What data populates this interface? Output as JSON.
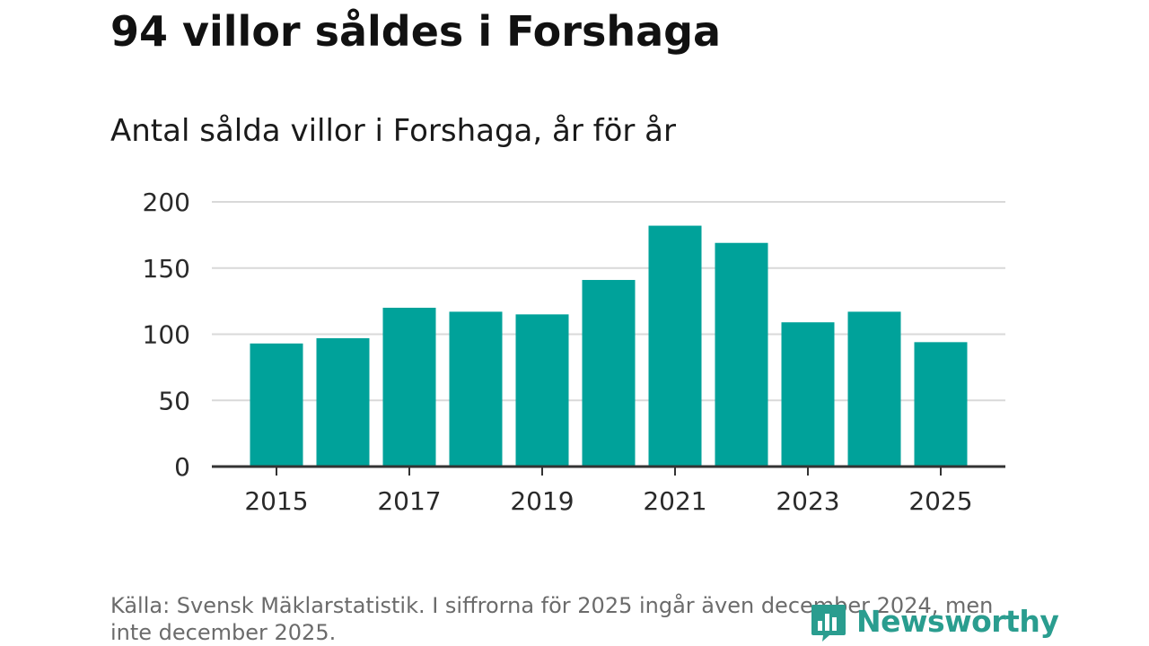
{
  "header": {
    "title": "94 villor såldes i Forshaga",
    "subtitle": "Antal sålda villor i Forshaga, år för år"
  },
  "footer": {
    "source": "Källa: Svensk Mäklarstatistik. I siffrorna för 2025 ingår även december 2024, men inte december 2025.",
    "brand": "Newsworthy",
    "brand_icon": "bar-chart-logo-icon",
    "brand_color": "#2a9d8f"
  },
  "chart_data": {
    "type": "bar",
    "categories": [
      "2015",
      "2016",
      "2017",
      "2018",
      "2019",
      "2020",
      "2021",
      "2022",
      "2023",
      "2024",
      "2025"
    ],
    "values": [
      93,
      97,
      120,
      117,
      115,
      141,
      182,
      169,
      109,
      117,
      94
    ],
    "x_tick_labels": [
      "2015",
      "2017",
      "2019",
      "2021",
      "2023",
      "2025"
    ],
    "y_ticks": [
      0,
      50,
      100,
      150,
      200
    ],
    "ylim": [
      0,
      200
    ],
    "title": "94 villor såldes i Forshaga",
    "subtitle": "Antal sålda villor i Forshaga, år för år",
    "xlabel": "",
    "ylabel": "",
    "grid": true,
    "bar_color": "#00a29a"
  }
}
